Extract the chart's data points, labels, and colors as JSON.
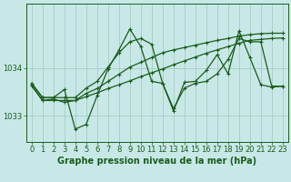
{
  "title": "Graphe pression niveau de la mer (hPa)",
  "bg_color": "#c8e8e8",
  "plot_bg": "#c8e8e8",
  "line_color": "#1a5c1a",
  "grid_color": "#9ec8b8",
  "x_ticks": [
    0,
    1,
    2,
    3,
    4,
    5,
    6,
    7,
    8,
    9,
    10,
    11,
    12,
    13,
    14,
    15,
    16,
    17,
    18,
    19,
    20,
    21,
    22,
    23
  ],
  "y_ticks": [
    1033,
    1034
  ],
  "ylim": [
    1032.45,
    1035.35
  ],
  "xlim": [
    -0.5,
    23.5
  ],
  "series1": [
    1033.68,
    1033.38,
    1033.38,
    1033.55,
    1032.72,
    1032.82,
    1033.42,
    1033.98,
    1034.38,
    1034.82,
    1034.45,
    1033.72,
    1033.68,
    1033.1,
    1033.7,
    1033.72,
    1033.95,
    1034.28,
    1033.88,
    1034.78,
    1034.22,
    1033.65,
    1033.6,
    1033.62
  ],
  "series2": [
    1033.68,
    1033.38,
    1033.38,
    1033.38,
    1033.38,
    1033.58,
    1033.72,
    1034.02,
    1034.32,
    1034.55,
    1034.62,
    1034.5,
    1033.68,
    1033.15,
    1033.58,
    1033.68,
    1033.72,
    1033.88,
    1034.18,
    1034.62,
    1034.55,
    1034.55,
    1033.62,
    1033.62
  ],
  "series3": [
    1033.63,
    1033.32,
    1033.35,
    1033.28,
    1033.32,
    1033.47,
    1033.57,
    1033.72,
    1033.87,
    1034.02,
    1034.12,
    1034.22,
    1034.32,
    1034.38,
    1034.43,
    1034.48,
    1034.53,
    1034.58,
    1034.62,
    1034.67,
    1034.7,
    1034.72,
    1034.73,
    1034.73
  ],
  "series4": [
    1033.63,
    1033.32,
    1033.32,
    1033.32,
    1033.32,
    1033.4,
    1033.48,
    1033.57,
    1033.65,
    1033.73,
    1033.82,
    1033.9,
    1033.98,
    1034.07,
    1034.15,
    1034.23,
    1034.31,
    1034.38,
    1034.45,
    1034.52,
    1034.58,
    1034.6,
    1034.62,
    1034.63
  ],
  "title_fontsize": 7,
  "tick_fontsize": 6,
  "marker": "+",
  "markersize": 3,
  "linewidth": 0.9
}
